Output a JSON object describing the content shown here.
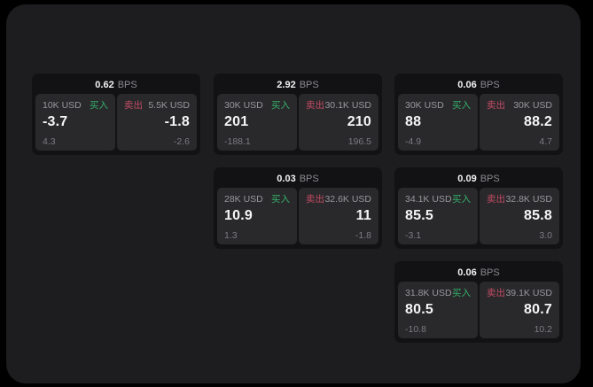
{
  "colors": {
    "page_bg": "#000000",
    "panel_bg": "#1d1d1f",
    "card_bg": "#121214",
    "tile_bg": "#29292c",
    "text_primary": "#f5f5f7",
    "text_muted": "#98989d",
    "buy_green": "#35b06a",
    "sell_red": "#c24b63"
  },
  "labels": {
    "bps": "BPS",
    "buy": "买入",
    "sell": "卖出"
  },
  "cards": [
    {
      "bps": "0.62",
      "buy": {
        "size": "10K USD",
        "value": "-3.7",
        "sub": "4.3"
      },
      "sell": {
        "size": "5.5K USD",
        "value": "-1.8",
        "sub": "-2.6"
      }
    },
    {
      "bps": "2.92",
      "buy": {
        "size": "30K USD",
        "value": "201",
        "sub": "-188.1"
      },
      "sell": {
        "size": "30.1K USD",
        "value": "210",
        "sub": "196.5"
      }
    },
    {
      "bps": "0.06",
      "buy": {
        "size": "30K USD",
        "value": "88",
        "sub": "-4.9"
      },
      "sell": {
        "size": "30K USD",
        "value": "88.2",
        "sub": "4.7"
      }
    },
    {
      "bps": "0.03",
      "buy": {
        "size": "28K USD",
        "value": "10.9",
        "sub": "1.3"
      },
      "sell": {
        "size": "32.6K USD",
        "value": "11",
        "sub": "-1.8"
      }
    },
    {
      "bps": "0.09",
      "buy": {
        "size": "34.1K USD",
        "value": "85.5",
        "sub": "-3.1"
      },
      "sell": {
        "size": "32.8K USD",
        "value": "85.8",
        "sub": "3.0"
      }
    },
    {
      "bps": "0.06",
      "buy": {
        "size": "31.8K USD",
        "value": "80.5",
        "sub": "-10.8"
      },
      "sell": {
        "size": "39.1K USD",
        "value": "80.7",
        "sub": "10.2"
      }
    }
  ]
}
